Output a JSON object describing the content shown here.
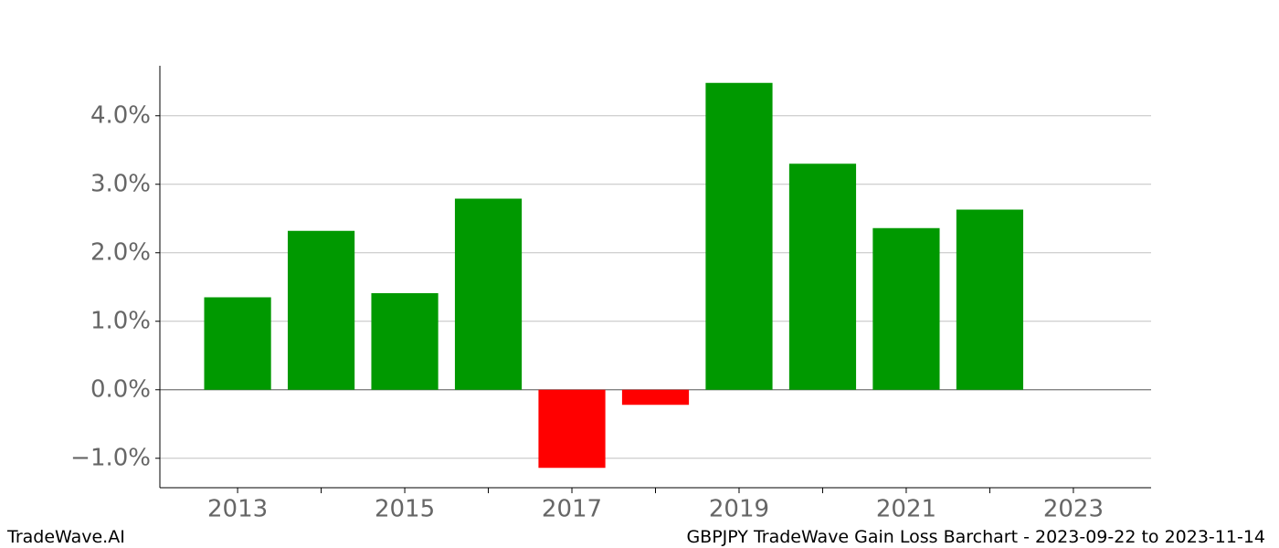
{
  "chart_data": {
    "type": "bar",
    "title": "GBPJPY TradeWave Gain Loss Barchart - 2023-09-22 to 2023-11-14",
    "brand": "TradeWave.AI",
    "x": [
      2013,
      2014,
      2015,
      2016,
      2017,
      2018,
      2019,
      2020,
      2021,
      2022
    ],
    "values": [
      1.35,
      2.32,
      1.41,
      2.79,
      -1.14,
      -0.22,
      4.48,
      3.3,
      2.36,
      2.63
    ],
    "positive_color": "#009900",
    "negative_color": "#ff0000",
    "xlim": [
      2012.07,
      2023.93
    ],
    "xticks": [
      2013,
      2015,
      2017,
      2019,
      2021,
      2023
    ],
    "xminor_ticks": [
      2014,
      2016,
      2018,
      2020,
      2022
    ],
    "ylim": [
      -1.43,
      4.73
    ],
    "yticks": [
      {
        "value": -1,
        "label": "−1.0%"
      },
      {
        "value": 0,
        "label": "0.0%"
      },
      {
        "value": 1,
        "label": "1.0%"
      },
      {
        "value": 2,
        "label": "2.0%"
      },
      {
        "value": 3,
        "label": "3.0%"
      },
      {
        "value": 4,
        "label": "4.0%"
      }
    ],
    "grid": true
  }
}
